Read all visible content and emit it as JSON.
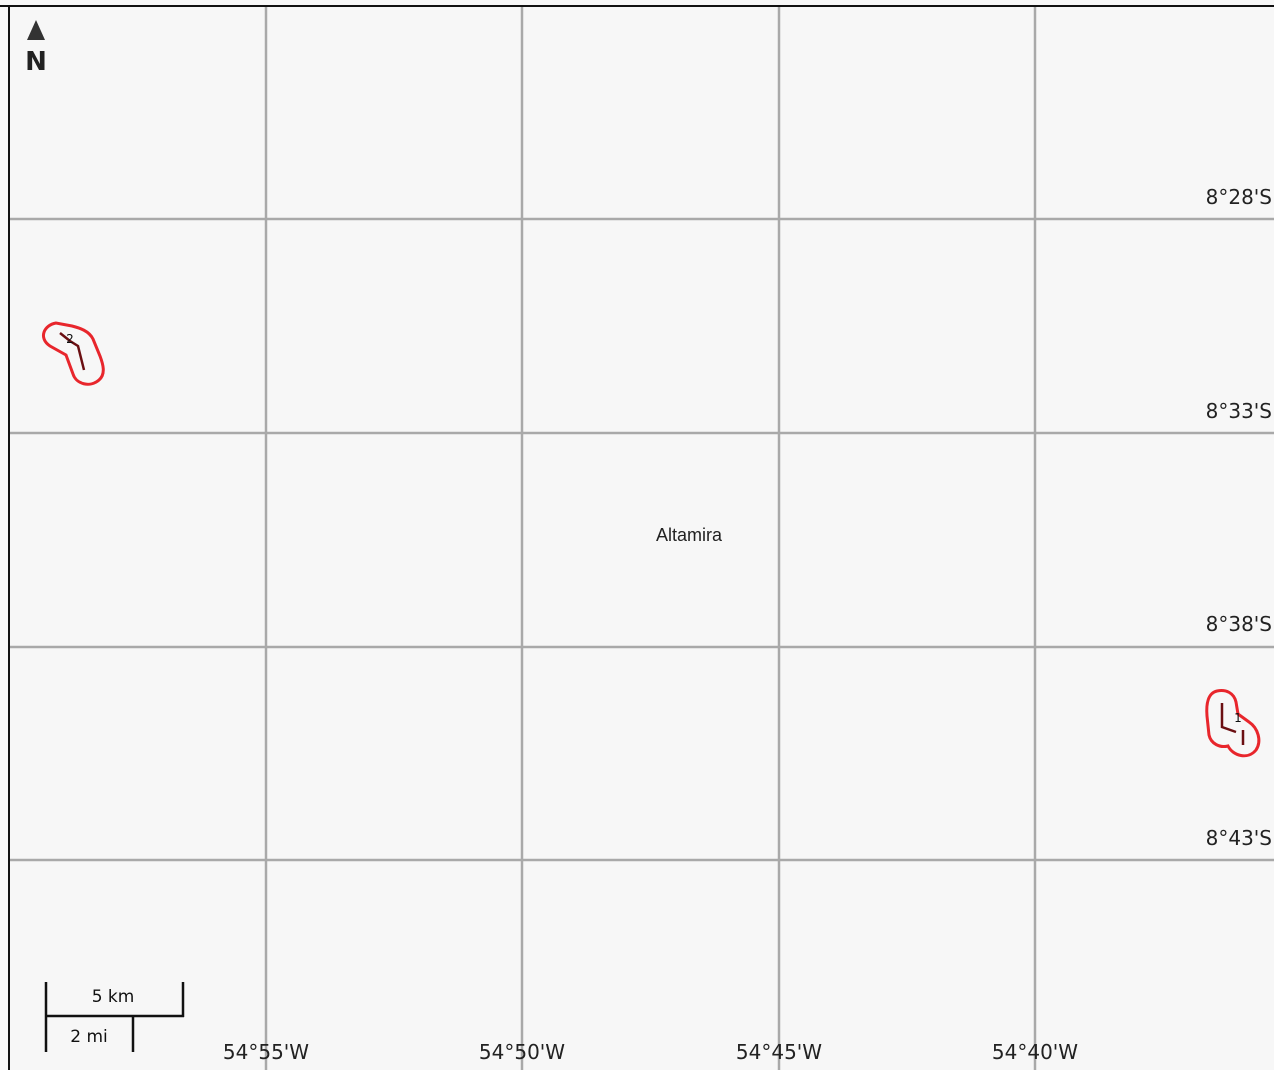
{
  "map": {
    "background_color": "#f7f7f7",
    "grid_color": "#a9a9a9",
    "feature_outline_color": "#e8262c",
    "feature_line_color": "#6b0f12",
    "north_arrow": {
      "icon": "north-arrow-icon",
      "label": "N"
    },
    "longitude_labels": [
      "54°55'W",
      "54°50'W",
      "54°45'W",
      "54°40'W"
    ],
    "latitude_labels": [
      "8°28'S",
      "8°33'S",
      "8°38'S",
      "8°43'S"
    ],
    "place_labels": [
      "Altamira"
    ],
    "scale_bar": {
      "metric_label": "5 km",
      "imperial_label": "2 mi"
    },
    "features": [
      {
        "name": "track-feature-northwest",
        "marker_text": "2"
      },
      {
        "name": "track-feature-east",
        "marker_text": "1"
      }
    ]
  }
}
